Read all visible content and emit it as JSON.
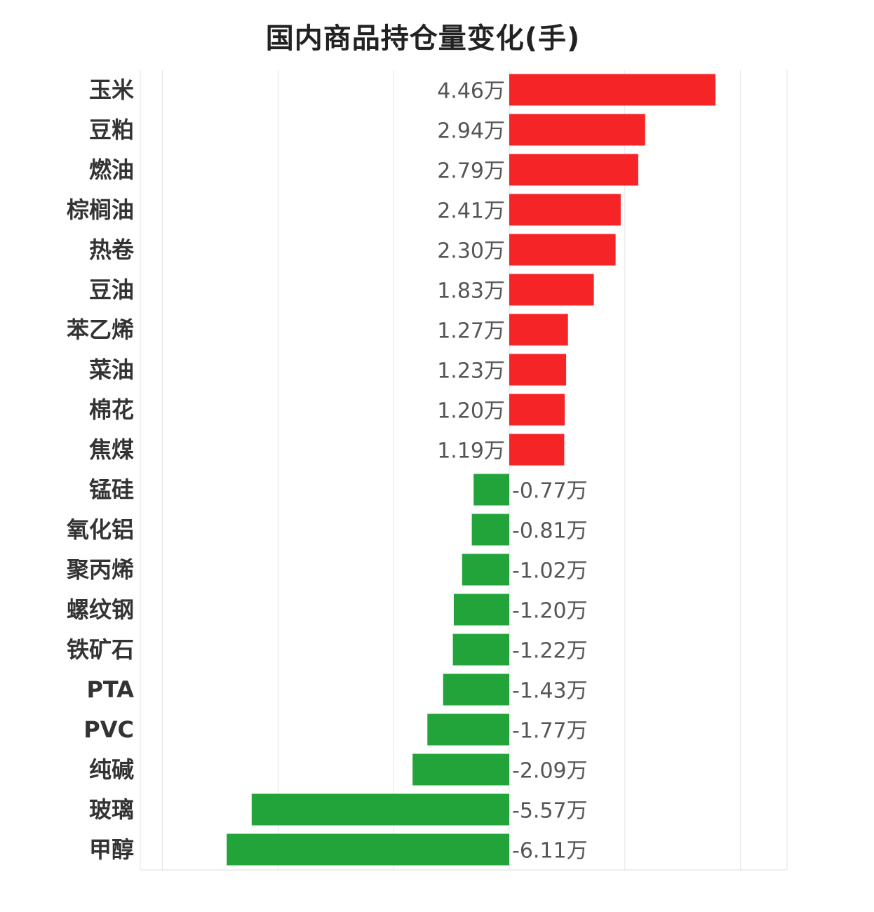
{
  "title": "国内商品持仓量变化(手)",
  "colors": {
    "positive": "#f52527",
    "negative": "#22a43a",
    "grid": "#e4e4e4",
    "axis": "#dddddd"
  },
  "chart_data": {
    "type": "bar",
    "orientation": "horizontal",
    "title": "国内商品持仓量变化(手)",
    "xlabel": "",
    "ylabel": "",
    "unit": "万",
    "grid": true,
    "xlim": [
      -10,
      15
    ],
    "categories": [
      "玉米",
      "豆粕",
      "燃油",
      "棕榈油",
      "热卷",
      "豆油",
      "苯乙烯",
      "菜油",
      "棉花",
      "焦煤",
      "锰硅",
      "氧化铝",
      "聚丙烯",
      "螺纹钢",
      "铁矿石",
      "PTA",
      "PVC",
      "纯碱",
      "玻璃",
      "甲醇"
    ],
    "values": [
      4.46,
      2.94,
      2.79,
      2.41,
      2.3,
      1.83,
      1.27,
      1.23,
      1.2,
      1.19,
      -0.77,
      -0.81,
      -1.02,
      -1.2,
      -1.22,
      -1.43,
      -1.77,
      -2.09,
      -5.57,
      -6.11
    ],
    "data_labels": [
      "4.46万",
      "2.94万",
      "2.79万",
      "2.41万",
      "2.30万",
      "1.83万",
      "1.27万",
      "1.23万",
      "1.20万",
      "1.19万",
      "-0.77万",
      "-0.81万",
      "-1.02万",
      "-1.20万",
      "-1.22万",
      "-1.43万",
      "-1.77万",
      "-2.09万",
      "-5.57万",
      "-6.11万"
    ]
  }
}
